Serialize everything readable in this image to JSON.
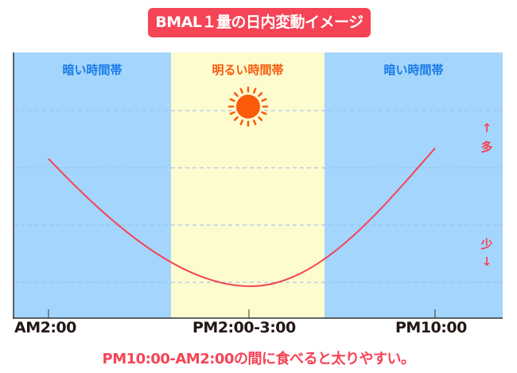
{
  "title": "BMAL１量の日内変動イメージ",
  "bands": [
    {
      "label": "暗い時間帯",
      "icon": "moon-icon"
    },
    {
      "label": "明るい時間帯",
      "icon": "sun-icon"
    },
    {
      "label": "暗い時間帯",
      "icon": "moon-icon"
    }
  ],
  "side": {
    "up_arrow": "↑",
    "many": "多",
    "few": "少",
    "down_arrow": "↓"
  },
  "note": "PM10:00-AM2:00の間に食べると太りやすい。",
  "colors": {
    "dark_band": "#a4d5fc",
    "light_band": "#fdfccf",
    "curve": "#f54456",
    "accent": "#f54456",
    "dark_label": "#1a7be8",
    "light_label": "#f95a0a"
  },
  "chart_data": {
    "type": "line",
    "title": "BMAL１量の日内変動イメージ",
    "xlabel": "",
    "ylabel": "",
    "categories": [
      "AM2:00",
      "PM2:00-3:00",
      "PM10:00"
    ],
    "values": [
      60,
      12,
      64
    ],
    "ylim": [
      0,
      100
    ],
    "grid": true
  }
}
